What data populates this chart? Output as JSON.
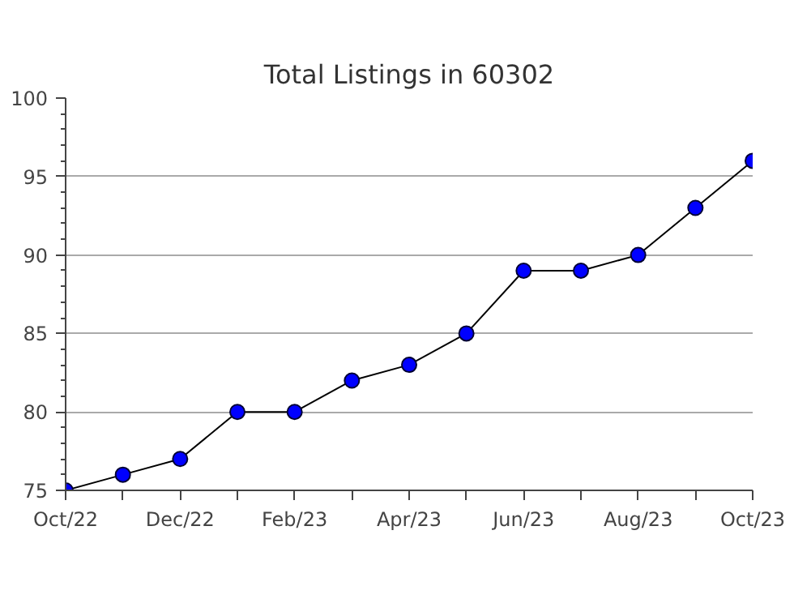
{
  "chart_data": {
    "type": "line",
    "title": "Total Listings in 60302",
    "categories": [
      "Oct/22",
      null,
      "Dec/22",
      null,
      "Feb/23",
      null,
      "Apr/23",
      null,
      "Jun/23",
      null,
      "Aug/23",
      null,
      "Oct/23"
    ],
    "series": [
      {
        "color": "#0000ff",
        "values": [
          75,
          76,
          77,
          80,
          80,
          82,
          83,
          85,
          89,
          89,
          90,
          93,
          96
        ]
      }
    ],
    "ylim": [
      75,
      100
    ],
    "yticks": [
      75,
      80,
      85,
      90,
      95,
      100
    ],
    "grid": "y",
    "marker": "circle",
    "line_style": "solid"
  }
}
